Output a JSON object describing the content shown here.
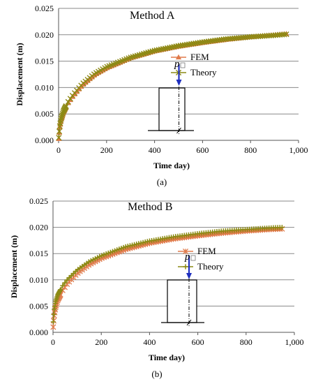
{
  "chart_data": [
    {
      "type": "line",
      "caption": "(a)",
      "annotation": "Method A",
      "xlabel": "Time day)",
      "ylabel": "Displacement (m)",
      "xlim": [
        0,
        1000
      ],
      "ylim": [
        0,
        0.025
      ],
      "x_ticks": [
        "0",
        "200",
        "400",
        "600",
        "800",
        "1,000"
      ],
      "y_ticks": [
        "0.000",
        "0.005",
        "0.010",
        "0.015",
        "0.020",
        "0.025"
      ],
      "grid": "horizontal",
      "legend": "middle-right",
      "load_label": "p",
      "series": [
        {
          "name": "FEM",
          "color": "#e07a4a",
          "marker": "triangle",
          "x": [
            1,
            3,
            5,
            10,
            20,
            40,
            60,
            100,
            150,
            200,
            300,
            400,
            500,
            600,
            700,
            800,
            900,
            950
          ],
          "y": [
            0.0003,
            0.0015,
            0.0025,
            0.0038,
            0.0053,
            0.0071,
            0.0084,
            0.0105,
            0.0124,
            0.0137,
            0.0156,
            0.0169,
            0.0178,
            0.0185,
            0.0191,
            0.0196,
            0.02,
            0.0202
          ]
        },
        {
          "name": "Theory",
          "color": "#8c8a14",
          "marker": "x",
          "x": [
            1,
            3,
            5,
            10,
            20,
            40,
            60,
            100,
            150,
            200,
            300,
            400,
            500,
            600,
            700,
            800,
            900,
            950
          ],
          "y": [
            0.0005,
            0.0017,
            0.0027,
            0.004,
            0.0055,
            0.0073,
            0.0086,
            0.0107,
            0.0126,
            0.0139,
            0.0157,
            0.017,
            0.0179,
            0.0186,
            0.0192,
            0.0196,
            0.0199,
            0.0201
          ]
        }
      ]
    },
    {
      "type": "line",
      "caption": "(b)",
      "annotation": "Method B",
      "xlabel": "Time day)",
      "ylabel": "Displacement (m)",
      "xlim": [
        0,
        1000
      ],
      "ylim": [
        0,
        0.025
      ],
      "x_ticks": [
        "0",
        "200",
        "400",
        "600",
        "800",
        "1,000"
      ],
      "y_ticks": [
        "0.000",
        "0.005",
        "0.010",
        "0.015",
        "0.020",
        "0.025"
      ],
      "grid": "horizontal",
      "legend": "middle-right",
      "load_label": "p",
      "series": [
        {
          "name": "FEM",
          "color": "#e07a4a",
          "marker": "asterisk",
          "x": [
            1,
            3,
            5,
            10,
            20,
            40,
            60,
            100,
            150,
            200,
            300,
            400,
            500,
            600,
            700,
            800,
            900,
            950
          ],
          "y": [
            0.001,
            0.0022,
            0.0032,
            0.0046,
            0.0062,
            0.008,
            0.0093,
            0.0112,
            0.0129,
            0.0141,
            0.0158,
            0.017,
            0.0178,
            0.0184,
            0.0189,
            0.0193,
            0.0196,
            0.0197
          ]
        },
        {
          "name": "Theory",
          "color": "#8c8a14",
          "marker": "plus",
          "x": [
            1,
            3,
            5,
            10,
            20,
            40,
            60,
            100,
            150,
            200,
            300,
            400,
            500,
            600,
            700,
            800,
            900,
            950
          ],
          "y": [
            0.002,
            0.0034,
            0.0044,
            0.0058,
            0.0072,
            0.0089,
            0.0101,
            0.0119,
            0.0135,
            0.0146,
            0.0163,
            0.0174,
            0.0182,
            0.0188,
            0.0193,
            0.0196,
            0.0199,
            0.02
          ]
        }
      ]
    }
  ]
}
